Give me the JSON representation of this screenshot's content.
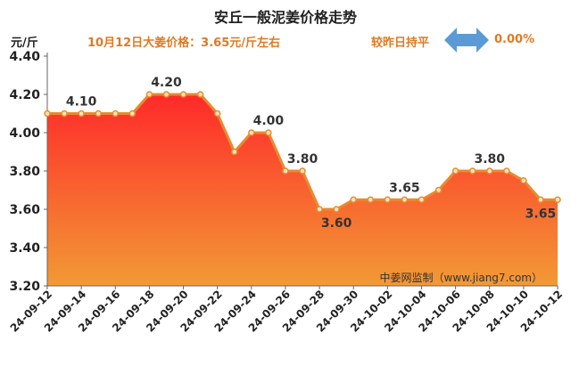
{
  "header": {
    "title": "安丘一般泥姜价格走势",
    "unit": "元/斤",
    "note": "10月12日大姜价格：3.65元/斤左右",
    "compare_label": "较昨日持平",
    "compare_pct": "0.00%"
  },
  "colors": {
    "line": "#e88a2e",
    "fill_top": "#ff2a2a",
    "fill_bottom": "#f29a35",
    "accent": "#e07a22",
    "arrow": "#5b9bd5"
  },
  "chart_data": {
    "type": "area",
    "x": [
      "24-09-12",
      "24-09-13",
      "24-09-14",
      "24-09-15",
      "24-09-16",
      "24-09-17",
      "24-09-18",
      "24-09-19",
      "24-09-20",
      "24-09-21",
      "24-09-22",
      "24-09-23",
      "24-09-24",
      "24-09-25",
      "24-09-26",
      "24-09-27",
      "24-09-28",
      "24-09-29",
      "24-09-30",
      "24-10-01",
      "24-10-02",
      "24-10-03",
      "24-10-04",
      "24-10-05",
      "24-10-06",
      "24-10-07",
      "24-10-08",
      "24-10-09",
      "24-10-10",
      "24-10-11",
      "24-10-12"
    ],
    "values": [
      4.1,
      4.1,
      4.1,
      4.1,
      4.1,
      4.1,
      4.2,
      4.2,
      4.2,
      4.2,
      4.1,
      3.9,
      4.0,
      4.0,
      3.8,
      3.8,
      3.6,
      3.6,
      3.65,
      3.65,
      3.65,
      3.65,
      3.65,
      3.7,
      3.8,
      3.8,
      3.8,
      3.8,
      3.75,
      3.65,
      3.65
    ],
    "x_tick_labels": [
      "24-09-12",
      "24-09-14",
      "24-09-16",
      "24-09-18",
      "24-09-20",
      "24-09-22",
      "24-09-24",
      "24-09-26",
      "24-09-28",
      "24-09-30",
      "24-10-02",
      "24-10-04",
      "24-10-06",
      "24-10-08",
      "24-10-10",
      "24-10-12"
    ],
    "y_tick_labels": [
      "3.20",
      "3.40",
      "3.60",
      "3.80",
      "4.00",
      "4.20",
      "4.40"
    ],
    "ylim": [
      3.2,
      4.4
    ],
    "grid": false,
    "data_labels": [
      {
        "index": 2,
        "text": "4.10",
        "position": "above"
      },
      {
        "index": 7,
        "text": "4.20",
        "position": "above"
      },
      {
        "index": 13,
        "text": "4.00",
        "position": "above"
      },
      {
        "index": 15,
        "text": "3.80",
        "position": "above"
      },
      {
        "index": 17,
        "text": "3.60",
        "position": "below"
      },
      {
        "index": 21,
        "text": "3.65",
        "position": "above"
      },
      {
        "index": 26,
        "text": "3.80",
        "position": "above"
      },
      {
        "index": 29,
        "text": "3.65",
        "position": "below"
      }
    ],
    "watermark": "中姜网监制（www.jiang7.com）"
  }
}
